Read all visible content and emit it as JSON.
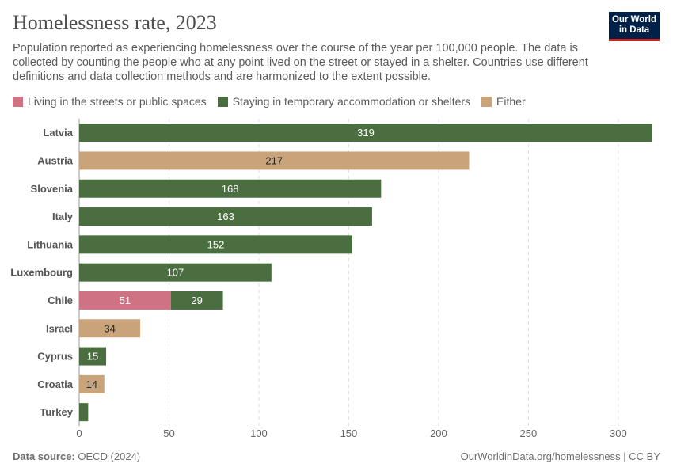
{
  "header": {
    "title": "Homelessness rate, 2023",
    "subtitle": "Population reported as experiencing homelessness over the course of the year per 100,000 people. The data is collected by counting the people who at any point lived on the street or stayed in a shelter. Countries use different definitions and data collection methods and are harmonized to the extent possible.",
    "logo": "Our World in Data"
  },
  "footer": {
    "source_label": "Data source:",
    "source": "OECD (2024)",
    "url": "OurWorldinData.org/homelessness | CC BY"
  },
  "colors": {
    "streets": "#cf7284",
    "shelters": "#4a6e3f",
    "either": "#c9a47a"
  },
  "chart_data": {
    "type": "bar",
    "orientation": "horizontal",
    "stacked": true,
    "xlim": [
      0,
      320
    ],
    "xticks": [
      0,
      50,
      100,
      150,
      200,
      250,
      300
    ],
    "grid": "vertical dashed",
    "legend_position": "top-left",
    "legend": [
      {
        "key": "streets",
        "name": "Living in the streets or public spaces"
      },
      {
        "key": "shelters",
        "name": "Staying in temporary accommodation or shelters"
      },
      {
        "key": "either",
        "name": "Either"
      }
    ],
    "categories": [
      "Latvia",
      "Austria",
      "Slovenia",
      "Italy",
      "Lithuania",
      "Luxembourg",
      "Chile",
      "Israel",
      "Cyprus",
      "Croatia",
      "Turkey"
    ],
    "series": [
      {
        "name": "Living in the streets or public spaces",
        "key": "streets",
        "values": [
          null,
          null,
          null,
          null,
          null,
          null,
          51,
          null,
          null,
          null,
          null
        ]
      },
      {
        "name": "Staying in temporary accommodation or shelters",
        "key": "shelters",
        "values": [
          319,
          null,
          168,
          163,
          152,
          107,
          29,
          null,
          15,
          null,
          5
        ]
      },
      {
        "name": "Either",
        "key": "either",
        "values": [
          null,
          217,
          null,
          null,
          null,
          null,
          null,
          34,
          null,
          14,
          null
        ]
      }
    ],
    "labeled": [
      true,
      true,
      true,
      true,
      true,
      true,
      true,
      true,
      true,
      true,
      false
    ]
  }
}
